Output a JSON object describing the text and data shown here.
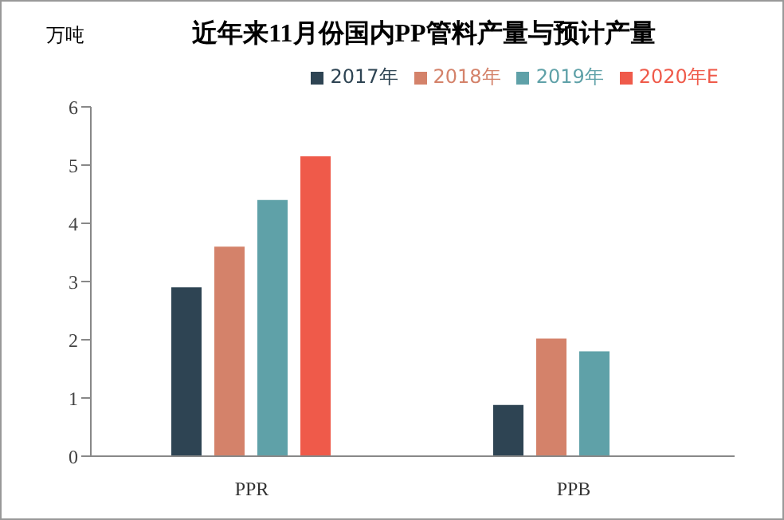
{
  "chart_data": {
    "type": "bar",
    "title": "近年来11月份国内PP管料产量与预计产量",
    "ylabel": "万吨",
    "categories": [
      "PPR",
      "PPB"
    ],
    "series": [
      {
        "name": "2017年",
        "color": "#2e4453",
        "values": [
          2.9,
          0.88
        ]
      },
      {
        "name": "2018年",
        "color": "#d4826a",
        "values": [
          3.6,
          2.02
        ]
      },
      {
        "name": "2019年",
        "color": "#5fa1a8",
        "values": [
          4.4,
          1.8
        ]
      },
      {
        "name": "2020年E",
        "color": "#ef5a4a",
        "values": [
          5.15,
          null
        ]
      }
    ],
    "ylim": [
      0,
      6
    ],
    "yticks": [
      0,
      1,
      2,
      3,
      4,
      5,
      6
    ],
    "grid": false,
    "legend": "top right"
  }
}
